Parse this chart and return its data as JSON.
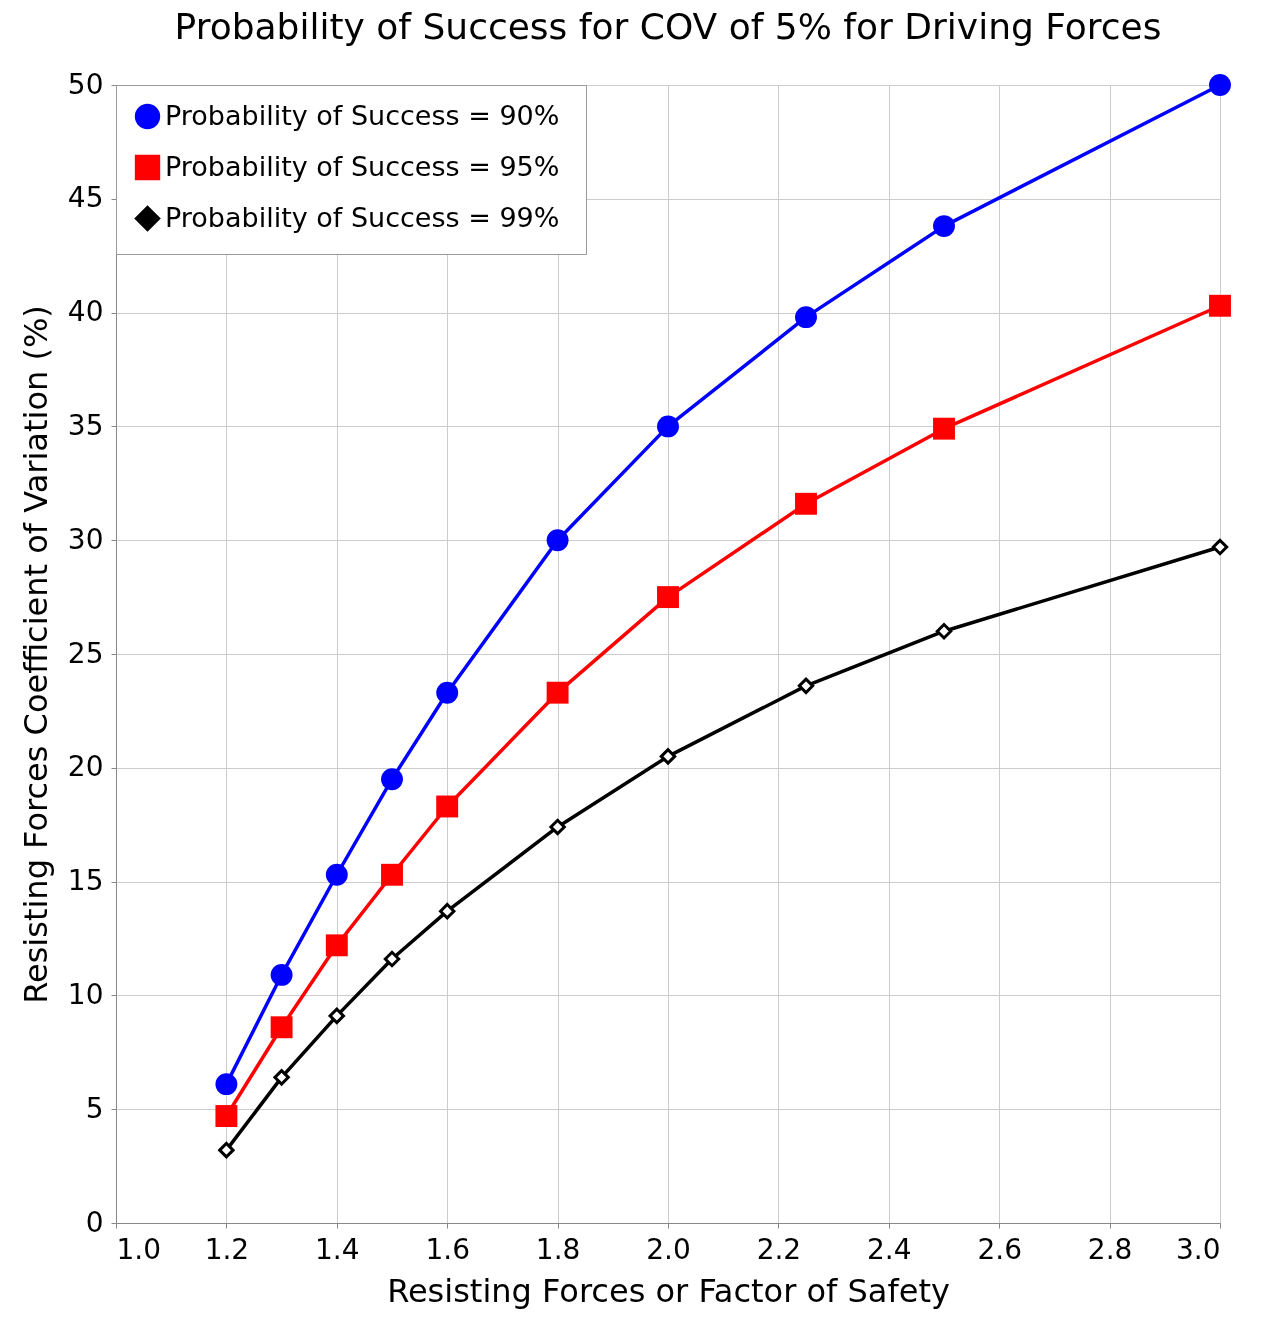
{
  "chart_data": {
    "type": "line",
    "title": "Probability of Success for COV of 5% for Driving Forces",
    "xlabel": "Resisting Forces or Factor of Safety",
    "ylabel": "Resisting Forces Coefficient of Variation (%)",
    "x": [
      1.2,
      1.3,
      1.4,
      1.5,
      1.6,
      1.8,
      2.0,
      2.25,
      2.5,
      3.0
    ],
    "series": [
      {
        "name": "Probability of Success = 90%",
        "color": "#0000ff",
        "marker": "circle",
        "values": [
          6.1,
          10.9,
          15.3,
          19.5,
          23.3,
          30.0,
          35.0,
          39.8,
          43.8,
          50.0
        ]
      },
      {
        "name": "Probability of Success = 95%",
        "color": "#ff0000",
        "marker": "square",
        "values": [
          4.7,
          8.6,
          12.2,
          15.3,
          18.3,
          23.3,
          27.5,
          31.6,
          34.9,
          40.3
        ]
      },
      {
        "name": "Probability of Success  = 99%",
        "color": "#000000",
        "marker": "diamond",
        "values": [
          3.2,
          6.4,
          9.1,
          11.6,
          13.7,
          17.4,
          20.5,
          23.6,
          26.0,
          29.7
        ]
      }
    ],
    "xlim": [
      1.0,
      3.0
    ],
    "xticks": [
      {
        "value": 1.0,
        "label": "1.0"
      },
      1.2,
      1.4,
      1.6,
      1.8,
      {
        "value": 2.0,
        "label": "2.0"
      },
      2.2,
      2.4,
      2.6,
      2.8,
      {
        "value": 3.0,
        "label": "3.0"
      }
    ],
    "ylim": [
      0,
      50
    ],
    "yticks": [
      0,
      5,
      10,
      15,
      20,
      25,
      30,
      35,
      40,
      45,
      50
    ],
    "grid": true,
    "legend": "top left",
    "line_style": "solid"
  }
}
